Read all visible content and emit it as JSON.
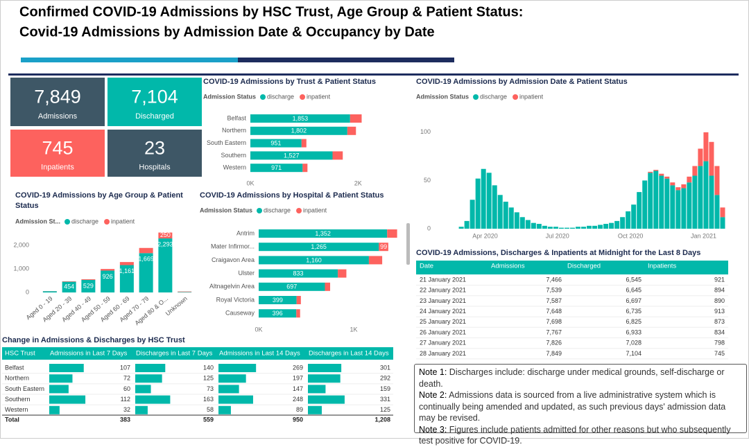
{
  "header": {
    "title_lines": [
      "Confirmed COVID-19 Admissions by HSC Trust, Age Group & Patient Status:",
      "Covid-19 Admissions by Admission Date & Occupancy by Date"
    ]
  },
  "kpis": [
    {
      "value": "7,849",
      "label": "Admissions",
      "color": "#3e5766"
    },
    {
      "value": "7,104",
      "label": "Discharged",
      "color": "#01b8aa"
    },
    {
      "value": "745",
      "label": "Inpatients",
      "color": "#fd625e"
    },
    {
      "value": "23",
      "label": "Hospitals",
      "color": "#3e5766"
    }
  ],
  "chart_data": [
    {
      "type": "hbar",
      "title": "COVID-19 Admissions by Trust & Patient Status",
      "legend_title": "Admission Status",
      "categories": [
        "Belfast",
        "Northern",
        "South Eastern",
        "Southern",
        "Western"
      ],
      "series": [
        {
          "name": "discharge",
          "color": "#01b8aa",
          "values": [
            1853,
            1802,
            951,
            1527,
            971
          ],
          "value_labels": [
            "1,853",
            "1,802",
            "951",
            "1,527",
            "971"
          ]
        },
        {
          "name": "inpatient",
          "color": "#fd625e",
          "values": [
            215,
            160,
            90,
            190,
            90
          ]
        }
      ],
      "xlim": [
        0,
        2500
      ],
      "xticks": [
        {
          "value": 0,
          "label": "0K"
        },
        {
          "value": 2000,
          "label": "2K"
        }
      ]
    },
    {
      "type": "datebar",
      "title": "COVID-19 Admissions by Admission Date & Patient Status",
      "legend_title": "Admission Status",
      "x": [
        "2020-03-02",
        "2020-03-09",
        "2020-03-16",
        "2020-03-23",
        "2020-03-30",
        "2020-04-06",
        "2020-04-13",
        "2020-04-20",
        "2020-04-27",
        "2020-05-04",
        "2020-05-11",
        "2020-05-18",
        "2020-05-25",
        "2020-06-01",
        "2020-06-08",
        "2020-06-15",
        "2020-06-22",
        "2020-06-29",
        "2020-07-06",
        "2020-07-13",
        "2020-07-20",
        "2020-07-27",
        "2020-08-03",
        "2020-08-10",
        "2020-08-17",
        "2020-08-24",
        "2020-08-31",
        "2020-09-07",
        "2020-09-14",
        "2020-09-21",
        "2020-09-28",
        "2020-10-05",
        "2020-10-12",
        "2020-10-19",
        "2020-10-26",
        "2020-11-02",
        "2020-11-09",
        "2020-11-16",
        "2020-11-23",
        "2020-11-30",
        "2020-12-07",
        "2020-12-14",
        "2020-12-21",
        "2020-12-28",
        "2021-01-04",
        "2021-01-11",
        "2021-01-18",
        "2021-01-25"
      ],
      "series": [
        {
          "name": "discharge",
          "color": "#01b8aa",
          "values": [
            2,
            8,
            30,
            52,
            62,
            58,
            45,
            35,
            28,
            22,
            17,
            12,
            9,
            6,
            5,
            3,
            2,
            2,
            1,
            1,
            1,
            2,
            2,
            3,
            3,
            4,
            5,
            6,
            8,
            12,
            18,
            25,
            38,
            50,
            58,
            60,
            55,
            52,
            45,
            40,
            42,
            48,
            55,
            65,
            70,
            55,
            35,
            12
          ]
        },
        {
          "name": "inpatient",
          "color": "#fd625e",
          "values": [
            0,
            0,
            0,
            0,
            0,
            0,
            0,
            0,
            0,
            0,
            0,
            0,
            0,
            0,
            0,
            0,
            0,
            0,
            0,
            0,
            0,
            0,
            0,
            0,
            0,
            0,
            0,
            0,
            0,
            0,
            0,
            0,
            0,
            0,
            1,
            1,
            2,
            2,
            3,
            3,
            4,
            6,
            10,
            18,
            30,
            35,
            30,
            10
          ]
        }
      ],
      "xlim": [
        "2020-01-27",
        "2021-02-01"
      ],
      "xticks": [
        {
          "value": "2020-04-01",
          "label": "Apr 2020"
        },
        {
          "value": "2020-07-01",
          "label": "Jul 2020"
        },
        {
          "value": "2020-10-01",
          "label": "Oct 2020"
        },
        {
          "value": "2021-01-01",
          "label": "Jan 2021"
        }
      ],
      "ylim": [
        0,
        115
      ],
      "yticks": [
        0,
        50,
        100
      ]
    },
    {
      "type": "vbar",
      "title": "COVID-19 Admissions by Age Group & Patient Status",
      "legend_title": "Admission St...",
      "categories": [
        "Aged 0 - 19",
        "Aged 20 - 39",
        "Aged 40 - 49",
        "Aged 50 - 59",
        "Aged 60 - 69",
        "Aged 70 - 79",
        "Aged 80 & O...",
        "Unknown"
      ],
      "series": [
        {
          "name": "discharge",
          "color": "#01b8aa",
          "values": [
            52,
            454,
            529,
            926,
            1161,
            1669,
            2293,
            20
          ],
          "value_labels": [
            null,
            "454",
            "529",
            "926",
            "1,161",
            "1,669",
            "2,293",
            null
          ]
        },
        {
          "name": "inpatient",
          "color": "#fd625e",
          "values": [
            5,
            20,
            30,
            70,
            130,
            220,
            250,
            20
          ],
          "value_labels": [
            null,
            null,
            null,
            null,
            null,
            null,
            "250",
            null
          ]
        }
      ],
      "ylim": [
        0,
        2600
      ],
      "yticks": [
        0,
        {
          "value": 1000,
          "label": "1,000"
        },
        {
          "value": 2000,
          "label": "2,000"
        }
      ]
    },
    {
      "type": "hbar",
      "title": "COVID-19 Admissions by Hospital & Patient Status",
      "legend_title": "Admission Status",
      "categories": [
        "Antrim",
        "Mater Infirmor...",
        "Craigavon Area",
        "Ulster",
        "Altnagelvin Area",
        "Royal Victoria",
        "Causeway"
      ],
      "series": [
        {
          "name": "discharge",
          "color": "#01b8aa",
          "values": [
            1352,
            1265,
            1160,
            833,
            697,
            399,
            396
          ],
          "value_labels": [
            "1,352",
            "1,265",
            "1,160",
            "833",
            "697",
            "399",
            "396"
          ]
        },
        {
          "name": "inpatient",
          "color": "#fd625e",
          "values": [
            105,
            99,
            140,
            90,
            55,
            45,
            40
          ],
          "value_labels": [
            null,
            "99",
            null,
            null,
            null,
            null,
            null
          ]
        }
      ],
      "xlim": [
        0,
        1500
      ],
      "xticks": [
        {
          "value": 0,
          "label": "0K"
        },
        {
          "value": 1000,
          "label": "1K"
        }
      ]
    }
  ],
  "daily_table": {
    "title": "COVID-19 Admissions, Discharges & Inpatients at Midnight for the Last 8 Days",
    "columns": [
      "Date",
      "Admissions",
      "Discharged",
      "Inpatients"
    ],
    "rows": [
      [
        "21 January 2021",
        "7,466",
        "6,545",
        "921"
      ],
      [
        "22 January 2021",
        "7,539",
        "6,645",
        "894"
      ],
      [
        "23 January 2021",
        "7,587",
        "6,697",
        "890"
      ],
      [
        "24 January 2021",
        "7,648",
        "6,735",
        "913"
      ],
      [
        "25 January 2021",
        "7,698",
        "6,825",
        "873"
      ],
      [
        "26 January 2021",
        "7,767",
        "6,933",
        "834"
      ],
      [
        "27 January 2021",
        "7,826",
        "7,028",
        "798"
      ],
      [
        "28 January 2021",
        "7,849",
        "7,104",
        "745"
      ]
    ]
  },
  "trust_table": {
    "title": "Change in Admissions & Discharges by HSC Trust",
    "columns": [
      "HSC Trust",
      "Admissions in Last 7 Days",
      "Discharges in Last 7 Days",
      "Admissions in Last 14 Days",
      "Discharges in Last 14 Days"
    ],
    "rows": [
      [
        "Belfast",
        "107",
        "140",
        "269",
        "301"
      ],
      [
        "Northern",
        "72",
        "125",
        "197",
        "292"
      ],
      [
        "South Eastern",
        "60",
        "73",
        "147",
        "159"
      ],
      [
        "Southern",
        "112",
        "163",
        "248",
        "331"
      ],
      [
        "Western",
        "32",
        "58",
        "89",
        "125"
      ]
    ],
    "total": [
      "Total",
      "383",
      "559",
      "950",
      "1,208"
    ]
  },
  "notes": [
    {
      "label": "Note 1:",
      "text": "Discharges include: discharge under medical grounds, self-discharge or death."
    },
    {
      "label": "Note 2:",
      "text": "Admissions data is sourced from a live administrative system which is continually being amended and updated, as such previous days' admission data may be revised."
    },
    {
      "label": "Note 3:",
      "text": "Figures include patients admitted for other reasons but who subsequently test positive for COVID-19."
    }
  ]
}
